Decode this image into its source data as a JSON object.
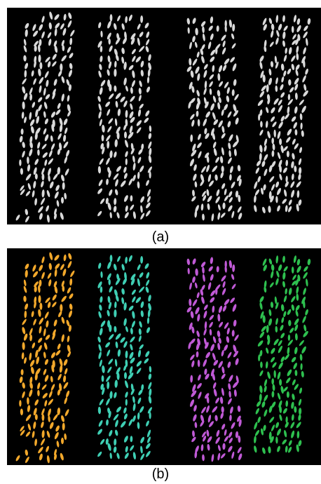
{
  "figure": {
    "panels": [
      {
        "label": "(a)",
        "mode": "grayscale",
        "background": "#000000",
        "groups": [
          {
            "color": "#d9d9d9"
          },
          {
            "color": "#d9d9d9"
          },
          {
            "color": "#d9d9d9"
          },
          {
            "color": "#d9d9d9"
          }
        ]
      },
      {
        "label": "(b)",
        "mode": "colored-clusters",
        "background": "#000000",
        "groups": [
          {
            "color": "#f2a82b"
          },
          {
            "color": "#3fcfb4"
          },
          {
            "color": "#c05ad6"
          },
          {
            "color": "#2ec04f"
          }
        ]
      }
    ]
  }
}
